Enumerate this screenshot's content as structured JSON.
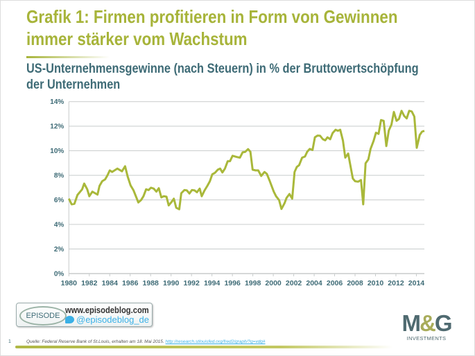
{
  "title_line1": "Grafik 1: Firmen profitieren in Form von Gewinnen",
  "title_line2": "immer stärker vom Wachstum",
  "subtitle_line1": "US-Unternehmensgewinne (nach Steuern) in % der Bruttowertschöpfung",
  "subtitle_line2": "der Unternehmen",
  "colors": {
    "line": "#a9b83a",
    "title": "#a7b43a",
    "subtitle": "#3e6b76",
    "grid": "#c8cccc",
    "tick": "#3e6b76"
  },
  "chart_data": {
    "type": "line",
    "title": "US-Unternehmensgewinne (nach Steuern) in % der Bruttowertschöpfung der Unternehmen",
    "xlabel": "",
    "ylabel": "",
    "xlim": [
      1980,
      2014.8
    ],
    "ylim": [
      0,
      14
    ],
    "grid": true,
    "x_ticks": [
      "1980",
      "1982",
      "1984",
      "1986",
      "1988",
      "1990",
      "1992",
      "1994",
      "1996",
      "1998",
      "2000",
      "2002",
      "2004",
      "2006",
      "2008",
      "2010",
      "2012",
      "2014"
    ],
    "y_ticks": [
      "0%",
      "2%",
      "4%",
      "6%",
      "8%",
      "10%",
      "12%",
      "14%"
    ],
    "series": [
      {
        "name": "Unternehmensgewinne in % der Bruttowertschöpfung",
        "x": [
          1980,
          1980.27,
          1980.54,
          1980.84,
          1981.3,
          1981.5,
          1981.8,
          1982.0,
          1982.3,
          1982.8,
          1983.0,
          1983.26,
          1983.55,
          1983.78,
          1984.0,
          1984.23,
          1984.75,
          1985.2,
          1985.5,
          1985.75,
          1986.04,
          1986.33,
          1986.8,
          1987.06,
          1987.3,
          1987.56,
          1987.8,
          1988.03,
          1988.3,
          1988.57,
          1988.8,
          1989.05,
          1989.3,
          1989.55,
          1989.77,
          1990.05,
          1990.27,
          1990.5,
          1990.8,
          1991.0,
          1991.3,
          1991.54,
          1991.8,
          1992.04,
          1992.3,
          1992.53,
          1992.8,
          1993.0,
          1993.28,
          1993.55,
          1993.8,
          1994.03,
          1994.3,
          1994.57,
          1994.8,
          1995.02,
          1995.27,
          1995.54,
          1995.77,
          1996.02,
          1996.44,
          1996.74,
          1997.0,
          1997.24,
          1997.53,
          1997.76,
          1997.98,
          1998.26,
          1998.53,
          1998.82,
          1999.14,
          1999.37,
          1999.66,
          2000.05,
          2000.27,
          2000.57,
          2000.8,
          2001.1,
          2001.3,
          2001.58,
          2001.85,
          2002.08,
          2002.3,
          2002.53,
          2002.82,
          2003.1,
          2003.32,
          2003.57,
          2003.84,
          2004.07,
          2004.33,
          2004.58,
          2004.85,
          2005.08,
          2005.3,
          2005.57,
          2005.8,
          2006.1,
          2006.32,
          2006.55,
          2006.82,
          2007.04,
          2007.33,
          2007.56,
          2007.78,
          2008.0,
          2008.3,
          2008.58,
          2008.8,
          2009.03,
          2009.3,
          2009.52,
          2009.82,
          2010.05,
          2010.3,
          2010.54,
          2010.8,
          2011.06,
          2011.3,
          2011.56,
          2011.8,
          2012.06,
          2012.3,
          2012.55,
          2012.8,
          2013.05,
          2013.3,
          2013.55,
          2013.8,
          2014.04,
          2014.33,
          2014.56,
          2014.78
        ],
        "y": [
          6.1,
          5.64,
          5.68,
          6.4,
          6.86,
          7.33,
          6.86,
          6.3,
          6.67,
          6.43,
          7.14,
          7.52,
          7.67,
          8.0,
          8.4,
          8.27,
          8.55,
          8.33,
          8.74,
          7.9,
          7.18,
          6.77,
          5.79,
          5.98,
          6.3,
          6.86,
          6.8,
          6.99,
          6.92,
          6.67,
          6.95,
          6.2,
          6.3,
          6.26,
          5.55,
          5.83,
          6.1,
          5.36,
          5.23,
          6.54,
          6.8,
          6.77,
          6.52,
          6.8,
          6.77,
          6.62,
          6.92,
          6.3,
          6.77,
          7.14,
          7.52,
          8.08,
          8.21,
          8.46,
          8.55,
          8.23,
          8.55,
          9.15,
          9.15,
          9.59,
          9.49,
          9.44,
          9.87,
          9.9,
          10.13,
          9.92,
          8.46,
          8.4,
          8.4,
          7.95,
          8.27,
          8.12,
          7.52,
          6.67,
          6.3,
          5.98,
          5.26,
          5.73,
          6.17,
          6.48,
          6.1,
          8.27,
          8.68,
          8.83,
          9.44,
          9.53,
          9.92,
          10.15,
          10.06,
          11.09,
          11.24,
          11.22,
          10.94,
          10.85,
          11.09,
          10.94,
          11.43,
          11.71,
          11.62,
          11.71,
          10.81,
          9.44,
          9.77,
          8.74,
          7.74,
          7.52,
          7.48,
          7.61,
          5.64,
          8.98,
          9.3,
          10.15,
          10.81,
          11.47,
          11.37,
          12.5,
          12.44,
          10.38,
          11.65,
          12.12,
          13.16,
          12.44,
          12.59,
          13.25,
          12.84,
          12.63,
          13.25,
          13.2,
          12.78,
          10.24,
          11.28,
          11.56,
          11.62
        ]
      }
    ]
  },
  "footer": {
    "episode_logo": "EPISODE",
    "episode_url": "www.episodeblog.com",
    "twitter_handle": "@episodeblog_de",
    "page_number": "1",
    "source_text": "Quelle: Federal Reserve Bank of St.Louis, erhalten am 18. Mai 2015.",
    "source_link": "http://research.stlouisfed.org/fred2/graph/?g=vdg#",
    "brand_mark_left": "M",
    "brand_mark_amp": "&",
    "brand_mark_right": "G",
    "brand_sub": "INVESTMENTS"
  }
}
